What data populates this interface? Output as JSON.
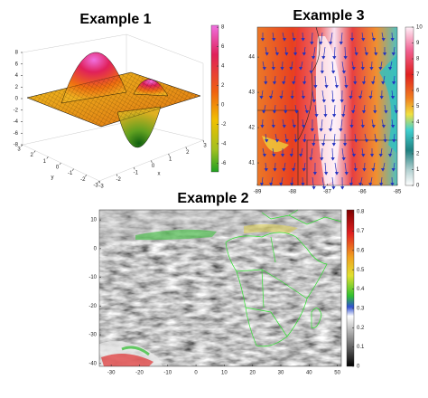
{
  "chart_data": [
    {
      "type": "surface",
      "title": "Example 1",
      "xlabel": "x",
      "xticks": [
        -3,
        -2,
        -1,
        0,
        1,
        2,
        3
      ],
      "xlim": [
        -3,
        3
      ],
      "ylabel": "y",
      "yticks": [
        -3,
        -2,
        -1,
        0,
        1,
        2,
        3
      ],
      "ylim": [
        -3,
        3
      ],
      "zticks": [
        -8,
        -6,
        -4,
        -2,
        0,
        2,
        4,
        6,
        8
      ],
      "zlim": [
        -8,
        8
      ],
      "colorbar": {
        "ticks": [
          -6,
          -4,
          -2,
          0,
          2,
          4,
          6,
          8
        ],
        "lim": [
          -6.9,
          8.2
        ]
      }
    },
    {
      "type": "quiver-map",
      "title": "Example 3",
      "xticks": [
        -89,
        -88,
        -87,
        -86,
        -85
      ],
      "xlim": [
        -89,
        -85
      ],
      "yticks": [
        41,
        42,
        43,
        44
      ],
      "ylim": [
        40.36,
        44.85
      ],
      "colorbar": {
        "ticks": [
          0,
          1,
          2,
          3,
          4,
          5,
          6,
          7,
          8,
          9,
          10
        ],
        "lim": [
          0,
          10
        ]
      }
    },
    {
      "type": "map",
      "title": "Example 2",
      "xticks": [
        -30,
        -20,
        -10,
        0,
        10,
        20,
        30,
        40,
        50
      ],
      "xlim": [
        -34.2,
        51.4
      ],
      "yticks": [
        -40,
        -30,
        -20,
        -10,
        0,
        10
      ],
      "ylim": [
        -41,
        13.5
      ],
      "colorbar": {
        "ticks": [
          0,
          0.1,
          0.2,
          0.3,
          0.4,
          0.5,
          0.6,
          0.7,
          0.8
        ],
        "lim": [
          0,
          0.81
        ]
      }
    }
  ]
}
